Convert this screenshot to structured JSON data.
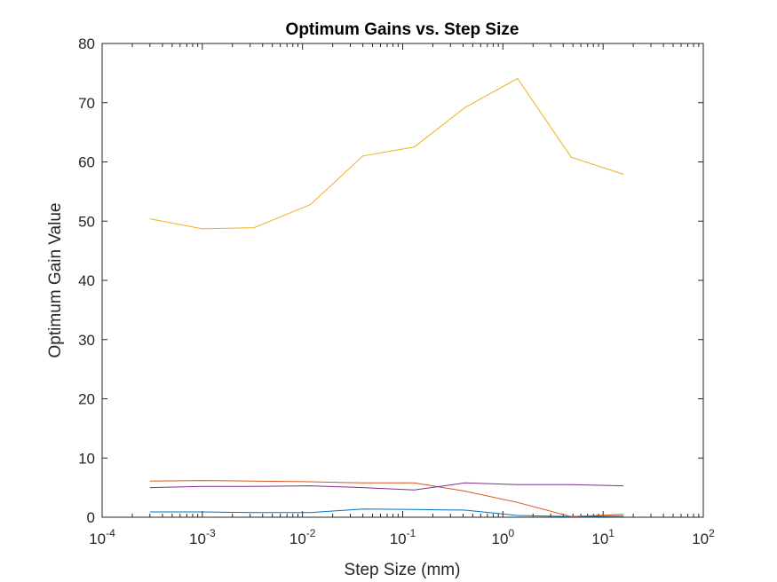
{
  "chart_data": {
    "type": "line",
    "title": "Optimum Gains vs. Step Size",
    "xlabel": "Step Size (mm)",
    "ylabel": "Optimum Gain Value",
    "xscale": "log",
    "xlim": [
      0.0001,
      100
    ],
    "ylim": [
      0,
      80
    ],
    "grid": false,
    "legend": "none",
    "x_ticks": [
      {
        "value": 0.0001,
        "base": "10",
        "exp": "-4"
      },
      {
        "value": 0.001,
        "base": "10",
        "exp": "-3"
      },
      {
        "value": 0.01,
        "base": "10",
        "exp": "-2"
      },
      {
        "value": 0.1,
        "base": "10",
        "exp": "-1"
      },
      {
        "value": 1,
        "base": "10",
        "exp": "0"
      },
      {
        "value": 10,
        "base": "10",
        "exp": "1"
      },
      {
        "value": 100,
        "base": "10",
        "exp": "2"
      }
    ],
    "y_ticks": [
      "0",
      "10",
      "20",
      "30",
      "40",
      "50",
      "60",
      "70",
      "80"
    ],
    "x": [
      0.0003,
      0.001,
      0.0033,
      0.012,
      0.04,
      0.13,
      0.42,
      1.4,
      4.8,
      16
    ],
    "series": [
      {
        "color": "#0072BD",
        "values": [
          0.9,
          0.9,
          0.8,
          0.8,
          1.4,
          1.3,
          1.2,
          0.3,
          0.1,
          0.2
        ]
      },
      {
        "color": "#D95319",
        "values": [
          6.1,
          6.2,
          6.1,
          6.0,
          5.8,
          5.8,
          4.4,
          2.5,
          0.1,
          0.5
        ]
      },
      {
        "color": "#EDB120",
        "values": [
          50.4,
          48.7,
          48.9,
          52.8,
          61.0,
          62.5,
          69.2,
          74.1,
          60.8,
          57.9
        ]
      },
      {
        "color": "#7E2F8E",
        "values": [
          5.0,
          5.2,
          5.2,
          5.3,
          5.0,
          4.6,
          5.8,
          5.5,
          5.5,
          5.3
        ]
      }
    ]
  }
}
